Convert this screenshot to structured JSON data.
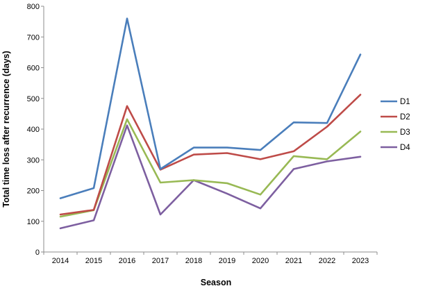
{
  "chart_data": {
    "type": "line",
    "title": "",
    "xlabel": "Season",
    "ylabel": "Total time loss after recurrence (days)",
    "ylim": [
      0,
      800
    ],
    "yticks": [
      0,
      100,
      200,
      300,
      400,
      500,
      600,
      700,
      800
    ],
    "grid": false,
    "legend_position": "right",
    "categories": [
      "2014",
      "2015",
      "2016",
      "2017",
      "2018",
      "2019",
      "2020",
      "2021",
      "2022",
      "2023"
    ],
    "series": [
      {
        "name": "D1",
        "color": "#4A7EBB",
        "values": [
          175,
          208,
          760,
          270,
          340,
          340,
          332,
          422,
          420,
          643
        ]
      },
      {
        "name": "D2",
        "color": "#BE4B48",
        "values": [
          122,
          137,
          475,
          268,
          317,
          322,
          302,
          328,
          408,
          512
        ]
      },
      {
        "name": "D3",
        "color": "#98B954",
        "values": [
          115,
          136,
          432,
          226,
          234,
          224,
          187,
          312,
          302,
          392
        ]
      },
      {
        "name": "D4",
        "color": "#7D5FA0",
        "values": [
          77,
          103,
          412,
          122,
          234,
          190,
          142,
          270,
          295,
          310
        ]
      }
    ]
  }
}
